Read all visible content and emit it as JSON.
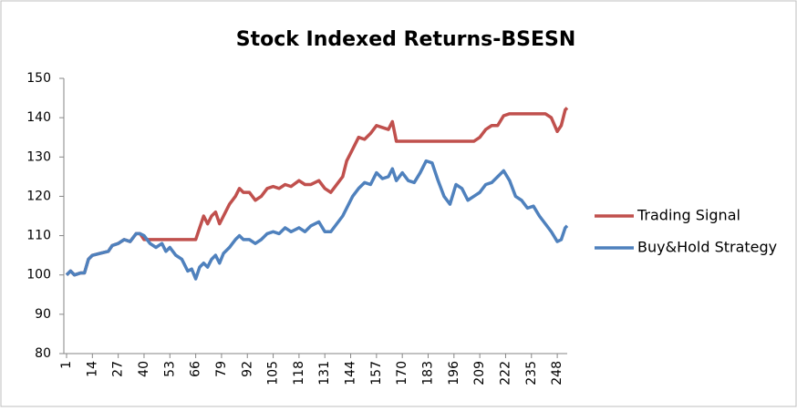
{
  "chart_data": {
    "type": "line",
    "title": "Stock Indexed Returns-BSESN",
    "x": [
      1,
      3,
      5,
      8,
      10,
      12,
      14,
      18,
      22,
      24,
      27,
      30,
      33,
      36,
      38,
      40,
      43,
      46,
      49,
      51,
      53,
      56,
      59,
      62,
      64,
      66,
      68,
      70,
      72,
      74,
      76,
      78,
      80,
      83,
      86,
      88,
      90,
      93,
      96,
      99,
      102,
      105,
      108,
      111,
      114,
      118,
      121,
      124,
      128,
      131,
      134,
      137,
      140,
      142,
      145,
      148,
      151,
      154,
      157,
      160,
      163,
      165,
      167,
      170,
      173,
      176,
      179,
      182,
      185,
      188,
      191,
      194,
      197,
      200,
      203,
      206,
      209,
      212,
      215,
      218,
      221,
      224,
      227,
      230,
      233,
      236,
      239,
      242,
      245,
      248,
      250,
      252,
      253
    ],
    "series": [
      {
        "name": "Trading Signal",
        "color": "#c0504d",
        "values": [
          100,
          101,
          100,
          100.5,
          100.5,
          104,
          105,
          105.5,
          106,
          107.5,
          108,
          109,
          108.5,
          110.5,
          110.5,
          109,
          109,
          109,
          109,
          109,
          109,
          109,
          109,
          109,
          109,
          109,
          112,
          115,
          113,
          115,
          116,
          113,
          115,
          118,
          120,
          122,
          121,
          121,
          119,
          120,
          122,
          122.5,
          122,
          123,
          122.5,
          124,
          123,
          123,
          124,
          122,
          121,
          123,
          125,
          129,
          132,
          135,
          134.5,
          136,
          138,
          137.5,
          137,
          139,
          134,
          134,
          134,
          134,
          134,
          134,
          134,
          134,
          134,
          134,
          134,
          134,
          134,
          134,
          135,
          137,
          138,
          138,
          140.5,
          141,
          141,
          141,
          141,
          141,
          141,
          141,
          140,
          136.5,
          138,
          142,
          142.5
        ]
      },
      {
        "name": "Buy&Hold Strategy",
        "color": "#4f81bd",
        "values": [
          100,
          101,
          100,
          100.5,
          100.5,
          104,
          105,
          105.5,
          106,
          107.5,
          108,
          109,
          108.5,
          110.5,
          110.5,
          110,
          108,
          107,
          108,
          106,
          107,
          105,
          104,
          101,
          101.5,
          99,
          102,
          103,
          102,
          104,
          105,
          103,
          105.5,
          107,
          109,
          110,
          109,
          109,
          108,
          109,
          110.5,
          111,
          110.5,
          112,
          111,
          112,
          111,
          112.5,
          113.5,
          111,
          111,
          113,
          115,
          117,
          120,
          122,
          123.5,
          123,
          126,
          124.5,
          125,
          127,
          124,
          126,
          124,
          123.5,
          126,
          129,
          128.5,
          124,
          120,
          118,
          123,
          122,
          119,
          120,
          121,
          123,
          123.5,
          125,
          126.5,
          124,
          120,
          119,
          117,
          117.5,
          115,
          113,
          111,
          108.5,
          109,
          112,
          112.5
        ]
      }
    ],
    "xlim": [
      1,
      253
    ],
    "xticks": [
      1,
      14,
      27,
      40,
      53,
      66,
      79,
      92,
      105,
      118,
      131,
      144,
      157,
      170,
      183,
      196,
      209,
      222,
      235,
      248
    ],
    "ylim": [
      80,
      150
    ],
    "yticks": [
      80,
      90,
      100,
      110,
      120,
      130,
      140,
      150
    ],
    "legend": "right"
  }
}
